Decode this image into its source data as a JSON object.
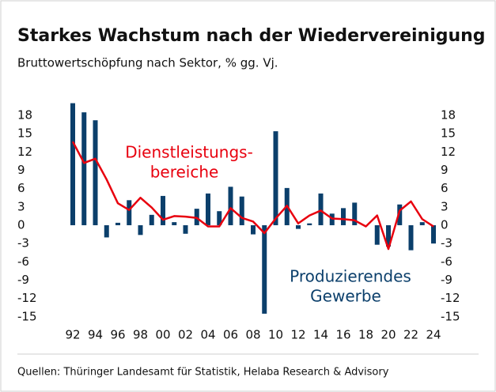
{
  "chart_data": {
    "type": "bar-line",
    "title": "Starkes Wachstum nach der Wiedervereinigung",
    "subtitle": "Bruttowertschöpfung nach Sektor, % gg. Vj.",
    "source": "Quellen: Thüringer Landesamt für Statistik, Helaba Research & Advisory",
    "categories": [
      "92",
      null,
      "94",
      null,
      "96",
      null,
      "98",
      null,
      "00",
      null,
      "02",
      null,
      "04",
      null,
      "06",
      null,
      "08",
      null,
      "10",
      null,
      "12",
      null,
      "14",
      null,
      "16",
      null,
      "18",
      null,
      "20",
      null,
      "22",
      null,
      "24"
    ],
    "series": [
      {
        "type": "bar",
        "color": "#0b3f6b",
        "values": [
          20,
          18.5,
          17.2,
          -2,
          0.4,
          4.1,
          -1.6,
          1.7,
          4.8,
          0.5,
          -1.4,
          2.7,
          5.2,
          2.3,
          6.3,
          4.7,
          -1.5,
          -14.5,
          15.4,
          6.1,
          -0.6,
          0.3,
          5.2,
          1.9,
          2.8,
          3.7,
          0,
          -3.2,
          -3.5,
          3.4,
          -4.1,
          0.5,
          -3.0
        ]
      },
      {
        "type": "line",
        "color": "#e8000e",
        "values": [
          13.7,
          10.2,
          10.9,
          7.5,
          3.6,
          2.5,
          4.5,
          2.9,
          0.9,
          1.5,
          1.4,
          1.2,
          -0.2,
          -0.2,
          2.8,
          1.2,
          0.6,
          -1.3,
          1.1,
          3.2,
          0.3,
          1.6,
          2.4,
          1.1,
          1.0,
          0.8,
          -0.2,
          1.6,
          -3.9,
          2.4,
          3.9,
          1.0,
          -0.2
        ]
      }
    ],
    "annotations": [
      {
        "lines": [
          "Dienstleistungs-",
          "bereiche"
        ],
        "color": "#e8000e"
      },
      {
        "lines": [
          "Produzierendes",
          "Gewerbe"
        ],
        "color": "#0b3f6b"
      }
    ],
    "ylim": [
      -16,
      20.5
    ],
    "yticks": [
      18,
      15,
      12,
      9,
      6,
      3,
      0,
      -3,
      -6,
      -9,
      -12,
      -15
    ]
  }
}
